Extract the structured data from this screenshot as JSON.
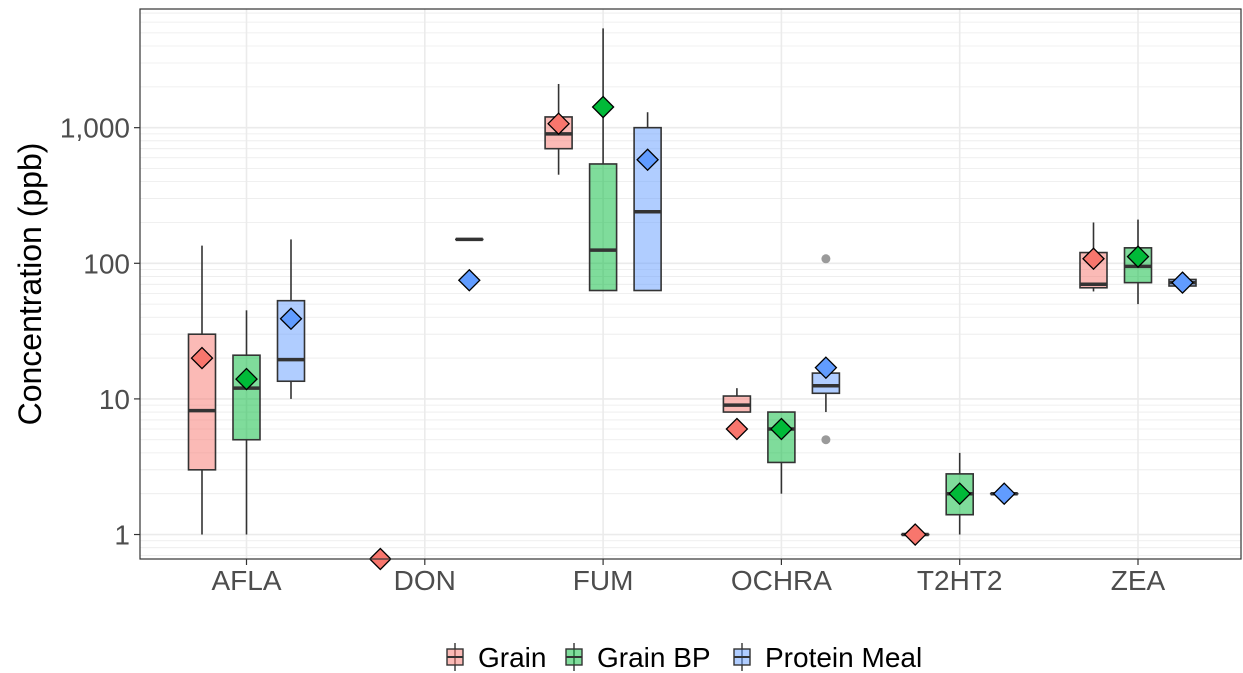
{
  "chart_data": {
    "type": "boxplot",
    "ylabel": "Concentration (ppb)",
    "xlabel": "",
    "yscale": "log10",
    "ylim": [
      0.66,
      7500
    ],
    "y_ticks": [
      1,
      10,
      100,
      1000
    ],
    "y_tick_labels": [
      "1",
      "10",
      "100",
      "1,000"
    ],
    "categories": [
      "AFLA",
      "DON",
      "FUM",
      "OCHRA",
      "T2HT2",
      "ZEA"
    ],
    "grid": true,
    "legend_position": "bottom",
    "series": [
      {
        "name": "Grain",
        "color": "#F8766D",
        "stats": [
          {
            "category": "AFLA",
            "whisker_low": 1,
            "q1": 3,
            "median": 8.2,
            "q3": 30,
            "whisker_high": 135,
            "mean": 20,
            "outliers": []
          },
          {
            "category": "DON",
            "mean": 0.66,
            "outliers": []
          },
          {
            "category": "FUM",
            "whisker_low": 450,
            "q1": 700,
            "median": 900,
            "q3": 1200,
            "whisker_high": 2100,
            "mean": 1070,
            "outliers": []
          },
          {
            "category": "OCHRA",
            "whisker_low": 8,
            "q1": 8,
            "median": 9,
            "q3": 10.5,
            "whisker_high": 12,
            "mean": 6,
            "outliers": []
          },
          {
            "category": "T2HT2",
            "whisker_low": 1,
            "q1": 1,
            "median": 1,
            "q3": 1,
            "whisker_high": 1,
            "mean": 1,
            "outliers": []
          },
          {
            "category": "ZEA",
            "whisker_low": 62,
            "q1": 66,
            "median": 70,
            "q3": 120,
            "whisker_high": 200,
            "mean": 108,
            "outliers": []
          }
        ]
      },
      {
        "name": "Grain BP",
        "color": "#00BA38",
        "stats": [
          {
            "category": "AFLA",
            "whisker_low": 1,
            "q1": 5,
            "median": 12,
            "q3": 21,
            "whisker_high": 45,
            "mean": 14,
            "outliers": []
          },
          {
            "category": "FUM",
            "whisker_low": 63,
            "q1": 63,
            "median": 125,
            "q3": 540,
            "whisker_high": 5400,
            "mean": 1420,
            "outliers": []
          },
          {
            "category": "OCHRA",
            "whisker_low": 2,
            "q1": 3.4,
            "median": 6,
            "q3": 8,
            "whisker_high": 8,
            "mean": 6,
            "outliers": []
          },
          {
            "category": "T2HT2",
            "whisker_low": 1,
            "q1": 1.4,
            "median": 2,
            "q3": 2.8,
            "whisker_high": 4,
            "mean": 2,
            "outliers": []
          },
          {
            "category": "ZEA",
            "whisker_low": 50,
            "q1": 72,
            "median": 95,
            "q3": 130,
            "whisker_high": 210,
            "mean": 112,
            "outliers": []
          }
        ]
      },
      {
        "name": "Protein Meal",
        "color": "#619CFF",
        "stats": [
          {
            "category": "AFLA",
            "whisker_low": 10,
            "q1": 13.5,
            "median": 19.5,
            "q3": 53,
            "whisker_high": 150,
            "mean": 39,
            "outliers": []
          },
          {
            "category": "DON",
            "whisker_low": 150,
            "q1": 150,
            "median": 150,
            "q3": 150,
            "whisker_high": 150,
            "mean": 75,
            "outliers": []
          },
          {
            "category": "FUM",
            "whisker_low": 63,
            "q1": 63,
            "median": 240,
            "q3": 1000,
            "whisker_high": 1300,
            "mean": 580,
            "outliers": []
          },
          {
            "category": "OCHRA",
            "whisker_low": 8,
            "q1": 11,
            "median": 12.5,
            "q3": 15.5,
            "whisker_high": 15.5,
            "mean": 17,
            "outliers": [
              5,
              108
            ]
          },
          {
            "category": "T2HT2",
            "whisker_low": 2,
            "q1": 2,
            "median": 2,
            "q3": 2,
            "whisker_high": 2,
            "mean": 2,
            "outliers": []
          },
          {
            "category": "ZEA",
            "whisker_low": 68,
            "q1": 68,
            "median": 72,
            "q3": 76,
            "whisker_high": 76,
            "mean": 72,
            "outliers": []
          }
        ]
      }
    ]
  }
}
